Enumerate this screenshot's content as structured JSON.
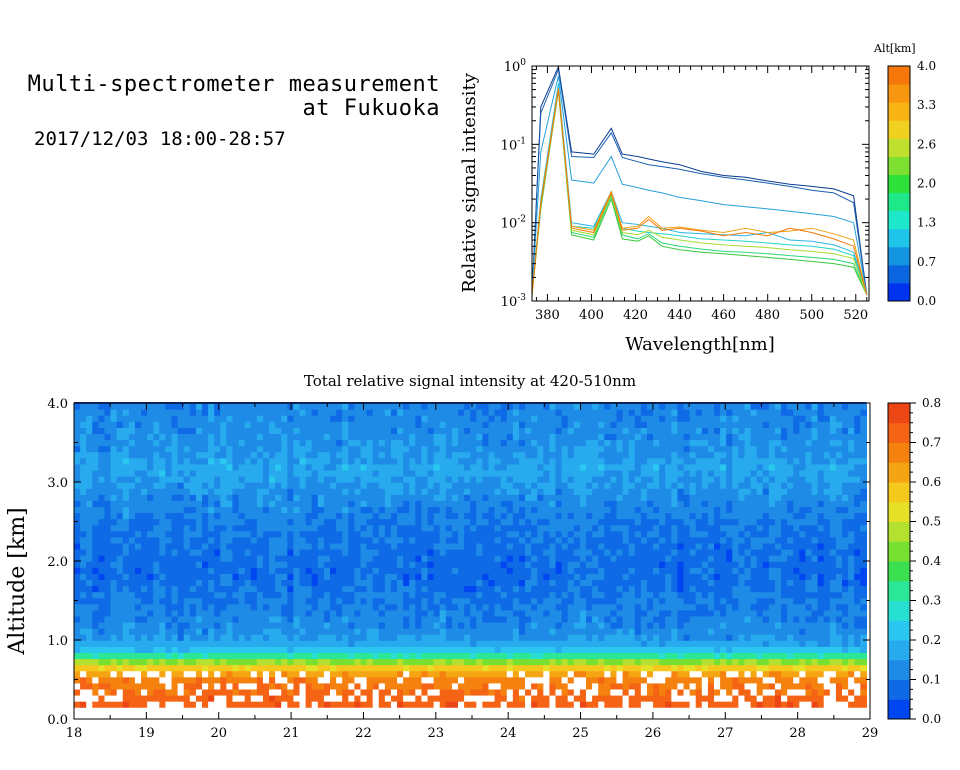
{
  "header": {
    "title_line1": "Multi-spectrometer measurement",
    "title_line2": "at Fukuoka",
    "datetime": "2017/12/03 18:00-28:57"
  },
  "chart_data": [
    {
      "type": "line",
      "title": "",
      "xlabel": "Wavelength[nm]",
      "ylabel": "Relative signal intensity",
      "xlim": [
        373,
        526
      ],
      "ylim": [
        0.001,
        1
      ],
      "yscale": "log",
      "x_ticks": [
        380,
        400,
        420,
        440,
        460,
        480,
        500,
        520
      ],
      "y_ticks": [
        {
          "exp": "-3",
          "value": 0.001
        },
        {
          "exp": "-2",
          "value": 0.01
        },
        {
          "exp": "-1",
          "value": 0.1
        },
        {
          "exp": "0",
          "value": 1
        }
      ],
      "y_tick_base": "10",
      "grid": false,
      "colorbar": {
        "label": "Alt[km]",
        "ticks": [
          "0.0",
          "0.7",
          "1.3",
          "2.0",
          "2.6",
          "3.3",
          "4.0"
        ],
        "colors": [
          "#0033ee",
          "#0a66e0",
          "#1495e2",
          "#1ec5e8",
          "#1ee8cc",
          "#1ee88a",
          "#2de03a",
          "#7ee030",
          "#c0e030",
          "#f0d020",
          "#f7b414",
          "#f7960f",
          "#f7780a"
        ]
      },
      "x": [
        373,
        377,
        385,
        391,
        401,
        409,
        414,
        421,
        426,
        432,
        440,
        450,
        460,
        470,
        480,
        490,
        500,
        510,
        519,
        525
      ],
      "series": [
        {
          "color": "#0a3a8f",
          "values": [
            0.0012,
            0.3,
            0.98,
            0.08,
            0.075,
            0.16,
            0.075,
            0.07,
            0.065,
            0.06,
            0.055,
            0.045,
            0.04,
            0.038,
            0.034,
            0.031,
            0.029,
            0.027,
            0.022,
            0.0012
          ]
        },
        {
          "color": "#1a5fb0",
          "values": [
            0.0012,
            0.25,
            0.9,
            0.07,
            0.068,
            0.14,
            0.068,
            0.06,
            0.055,
            0.052,
            0.048,
            0.042,
            0.038,
            0.035,
            0.032,
            0.029,
            0.026,
            0.024,
            0.018,
            0.0012
          ]
        },
        {
          "color": "#25a0dd",
          "values": [
            0.0012,
            0.08,
            0.75,
            0.035,
            0.032,
            0.07,
            0.031,
            0.028,
            0.026,
            0.024,
            0.021,
            0.019,
            0.017,
            0.016,
            0.015,
            0.014,
            0.013,
            0.012,
            0.01,
            0.0012
          ]
        },
        {
          "color": "#2ab6e6",
          "values": [
            0.0012,
            0.02,
            0.6,
            0.01,
            0.009,
            0.025,
            0.01,
            0.0095,
            0.009,
            0.0085,
            0.0075,
            0.0072,
            0.007,
            0.0068,
            0.0075,
            0.006,
            0.0058,
            0.0052,
            0.0042,
            0.0012
          ]
        },
        {
          "color": "#20d6c8",
          "values": [
            0.0012,
            0.018,
            0.55,
            0.009,
            0.0085,
            0.024,
            0.0085,
            0.0078,
            0.0075,
            0.0072,
            0.0068,
            0.0062,
            0.006,
            0.0058,
            0.0055,
            0.0052,
            0.005,
            0.0046,
            0.0038,
            0.0012
          ]
        },
        {
          "color": "#2cd878",
          "values": [
            0.0012,
            0.016,
            0.5,
            0.0075,
            0.0065,
            0.022,
            0.007,
            0.0062,
            0.0072,
            0.0055,
            0.005,
            0.0046,
            0.0043,
            0.0042,
            0.004,
            0.0038,
            0.0036,
            0.0034,
            0.003,
            0.0012
          ]
        },
        {
          "color": "#3cc83c",
          "values": [
            0.0012,
            0.015,
            0.48,
            0.007,
            0.006,
            0.02,
            0.0062,
            0.0058,
            0.0068,
            0.005,
            0.0045,
            0.0042,
            0.004,
            0.0038,
            0.0036,
            0.0034,
            0.0032,
            0.003,
            0.0027,
            0.0012
          ]
        },
        {
          "color": "#a8dc2c",
          "values": [
            0.0012,
            0.017,
            0.5,
            0.008,
            0.007,
            0.023,
            0.0075,
            0.007,
            0.008,
            0.0065,
            0.006,
            0.0055,
            0.0052,
            0.005,
            0.0048,
            0.0045,
            0.0043,
            0.004,
            0.0035,
            0.0012
          ]
        },
        {
          "color": "#f0a014",
          "values": [
            0.0012,
            0.018,
            0.52,
            0.009,
            0.008,
            0.025,
            0.0085,
            0.009,
            0.012,
            0.0085,
            0.0088,
            0.008,
            0.0075,
            0.0085,
            0.0075,
            0.0078,
            0.0085,
            0.0072,
            0.006,
            0.0012
          ]
        },
        {
          "color": "#f07a0a",
          "values": [
            0.0012,
            0.017,
            0.5,
            0.0085,
            0.0075,
            0.024,
            0.008,
            0.0085,
            0.011,
            0.008,
            0.0085,
            0.0078,
            0.0068,
            0.0075,
            0.0068,
            0.0085,
            0.0075,
            0.0062,
            0.005,
            0.0012
          ]
        }
      ]
    },
    {
      "type": "heatmap",
      "title": "Total relative signal intensity at 420-510nm",
      "xlabel": "",
      "ylabel": "Altitude [km]",
      "xlim": [
        18,
        29
      ],
      "ylim": [
        0,
        4
      ],
      "x_ticks": [
        18,
        19,
        20,
        21,
        22,
        23,
        24,
        25,
        26,
        27,
        28,
        29
      ],
      "y_ticks": [
        "0.0",
        "1.0",
        "2.0",
        "3.0",
        "4.0"
      ],
      "grid": false,
      "colorbar": {
        "ticks": [
          "0.0",
          "0.1",
          "0.2",
          "0.3",
          "0.4",
          "0.5",
          "0.6",
          "0.7",
          "0.8"
        ],
        "colors": [
          "#0046f0",
          "#0f6ae6",
          "#1e8ce6",
          "#28aaee",
          "#2ac8f0",
          "#28e0d2",
          "#2ae696",
          "#3ae050",
          "#78e030",
          "#b4e030",
          "#e6e028",
          "#f5c81e",
          "#f5a514",
          "#f5820f",
          "#f56414",
          "#eb4614"
        ]
      },
      "altitude_profile": {
        "altitude_km": [
          0.15,
          0.3,
          0.5,
          0.6,
          0.7,
          0.78,
          0.85,
          0.92,
          1.0,
          1.2,
          1.5,
          1.8,
          2.2,
          2.6,
          3.0,
          3.2,
          3.4,
          3.6,
          3.9
        ],
        "intensity": [
          0.75,
          0.72,
          0.68,
          0.62,
          0.5,
          0.35,
          0.25,
          0.18,
          0.15,
          0.12,
          0.1,
          0.08,
          0.09,
          0.11,
          0.15,
          0.17,
          0.14,
          0.13,
          0.12
        ]
      }
    }
  ]
}
